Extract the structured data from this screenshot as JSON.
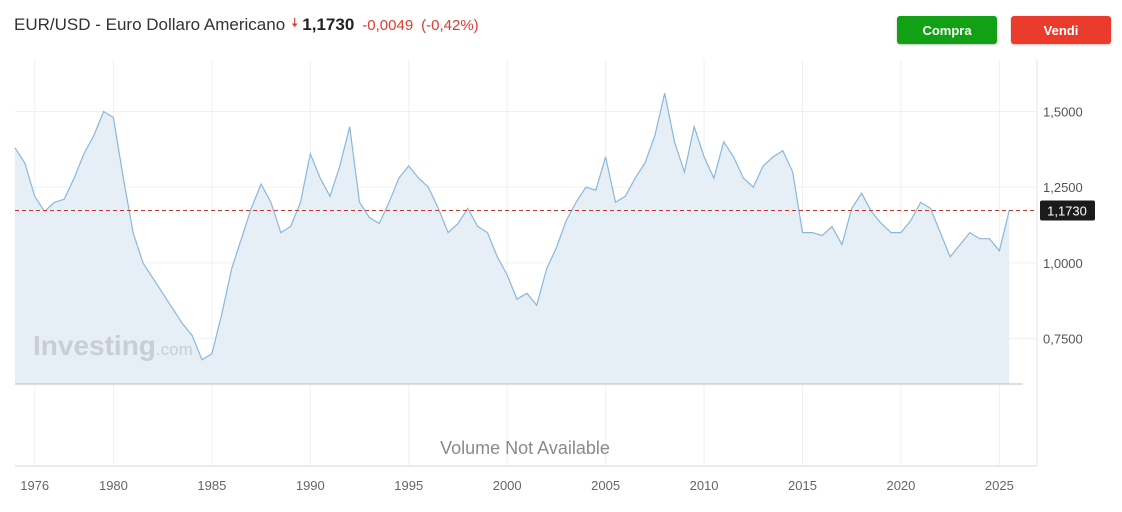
{
  "header": {
    "title": "EUR/USD - Euro Dollaro Americano",
    "price": "1,1730",
    "change": "-0,0049",
    "change_pct": "(-0,42%)",
    "direction_icon": "arrow-down-icon"
  },
  "actions": {
    "buy_label": "Compra",
    "sell_label": "Vendi",
    "buy_color": "#12a014",
    "sell_color": "#ea3b2c"
  },
  "watermark": {
    "brand": "Investing",
    "domain": ".com"
  },
  "volume_note": "Volume Not Available",
  "chart_data": {
    "type": "area",
    "series": [
      {
        "x": [
          1975.0,
          1975.5,
          1976.0,
          1976.5,
          1977.0,
          1977.5,
          1978.0,
          1978.5,
          1979.0,
          1979.5,
          1980.0,
          1980.5,
          1981.0,
          1981.5,
          1982.0,
          1982.5,
          1983.0,
          1983.5,
          1984.0,
          1984.5,
          1985.0,
          1985.5,
          1986.0,
          1986.5,
          1987.0,
          1987.5,
          1988.0,
          1988.5,
          1989.0,
          1989.5,
          1990.0,
          1990.5,
          1991.0,
          1991.5,
          1992.0,
          1992.5,
          1993.0,
          1993.5,
          1994.0,
          1994.5,
          1995.0,
          1995.5,
          1996.0,
          1996.5,
          1997.0,
          1997.5,
          1998.0,
          1998.5,
          1999.0,
          1999.5,
          2000.0,
          2000.5,
          2001.0,
          2001.5,
          2002.0,
          2002.5,
          2003.0,
          2003.5,
          2004.0,
          2004.5,
          2005.0,
          2005.5,
          2006.0,
          2006.5,
          2007.0,
          2007.5,
          2008.0,
          2008.5,
          2009.0,
          2009.5,
          2010.0,
          2010.5,
          2011.0,
          2011.5,
          2012.0,
          2012.5,
          2013.0,
          2013.5,
          2014.0,
          2014.5,
          2015.0,
          2015.5,
          2016.0,
          2016.5,
          2017.0,
          2017.5,
          2018.0,
          2018.5,
          2019.0,
          2019.5,
          2020.0,
          2020.5,
          2021.0,
          2021.5,
          2022.0,
          2022.5,
          2023.0,
          2023.5,
          2024.0,
          2024.5,
          2025.0,
          2025.5
        ],
        "y": [
          1.38,
          1.33,
          1.22,
          1.17,
          1.2,
          1.21,
          1.28,
          1.36,
          1.42,
          1.5,
          1.48,
          1.28,
          1.1,
          1.0,
          0.95,
          0.9,
          0.85,
          0.8,
          0.76,
          0.68,
          0.7,
          0.83,
          0.98,
          1.08,
          1.18,
          1.26,
          1.2,
          1.1,
          1.12,
          1.2,
          1.36,
          1.28,
          1.22,
          1.32,
          1.45,
          1.2,
          1.15,
          1.13,
          1.2,
          1.28,
          1.32,
          1.28,
          1.25,
          1.18,
          1.1,
          1.13,
          1.18,
          1.12,
          1.1,
          1.02,
          0.96,
          0.88,
          0.9,
          0.86,
          0.98,
          1.05,
          1.14,
          1.2,
          1.25,
          1.24,
          1.35,
          1.2,
          1.22,
          1.28,
          1.33,
          1.42,
          1.56,
          1.4,
          1.3,
          1.45,
          1.35,
          1.28,
          1.4,
          1.35,
          1.28,
          1.25,
          1.32,
          1.35,
          1.37,
          1.3,
          1.1,
          1.1,
          1.09,
          1.12,
          1.06,
          1.18,
          1.23,
          1.17,
          1.13,
          1.1,
          1.1,
          1.14,
          1.2,
          1.18,
          1.1,
          1.02,
          1.06,
          1.1,
          1.08,
          1.08,
          1.04,
          1.173
        ]
      }
    ],
    "last_value": 1.173,
    "last_label": "1,1730",
    "y_ticks": [
      "0,7500",
      "1,0000",
      "1,2500",
      "1,5000"
    ],
    "y_tick_values": [
      0.75,
      1.0,
      1.25,
      1.5
    ],
    "x_ticks": [
      "1976",
      "1980",
      "1985",
      "1990",
      "1995",
      "2000",
      "2005",
      "2010",
      "2015",
      "2020",
      "2025"
    ],
    "x_tick_values": [
      1976,
      1980,
      1985,
      1990,
      1995,
      2000,
      2005,
      2010,
      2015,
      2020,
      2025
    ],
    "ylim": [
      0.6,
      1.67
    ],
    "xlim": [
      1975.0,
      2026.2
    ],
    "grid": true,
    "line_color": "#8ab8da",
    "fill_color": "#e6eef6",
    "reference_line_color": "#c0392b"
  }
}
